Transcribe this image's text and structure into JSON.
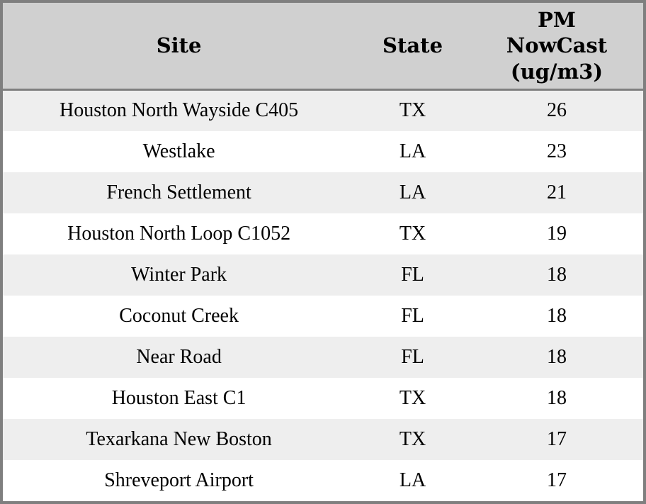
{
  "chart_data": {
    "type": "table",
    "columns": [
      "Site",
      "State",
      "PM NowCast (ug/m3)"
    ],
    "rows": [
      [
        "Houston North Wayside C405",
        "TX",
        26
      ],
      [
        "Westlake",
        "LA",
        23
      ],
      [
        "French Settlement",
        "LA",
        21
      ],
      [
        "Houston North Loop C1052",
        "TX",
        19
      ],
      [
        "Winter Park",
        "FL",
        18
      ],
      [
        "Coconut Creek",
        "FL",
        18
      ],
      [
        "Near Road",
        "FL",
        18
      ],
      [
        "Houston East C1",
        "TX",
        18
      ],
      [
        "Texarkana New Boston",
        "TX",
        17
      ],
      [
        "Shreveport Airport",
        "LA",
        17
      ]
    ]
  },
  "header": {
    "site": "Site",
    "state": "State",
    "pm_lines": [
      "PM",
      "NowCast",
      "(ug/m3)"
    ]
  },
  "colors": {
    "header_bg": "#d0d0d0",
    "row_alt_bg": "#eeeeee",
    "row_bg": "#ffffff",
    "border_color": "#7f7f7f",
    "text_color": "#000000"
  }
}
